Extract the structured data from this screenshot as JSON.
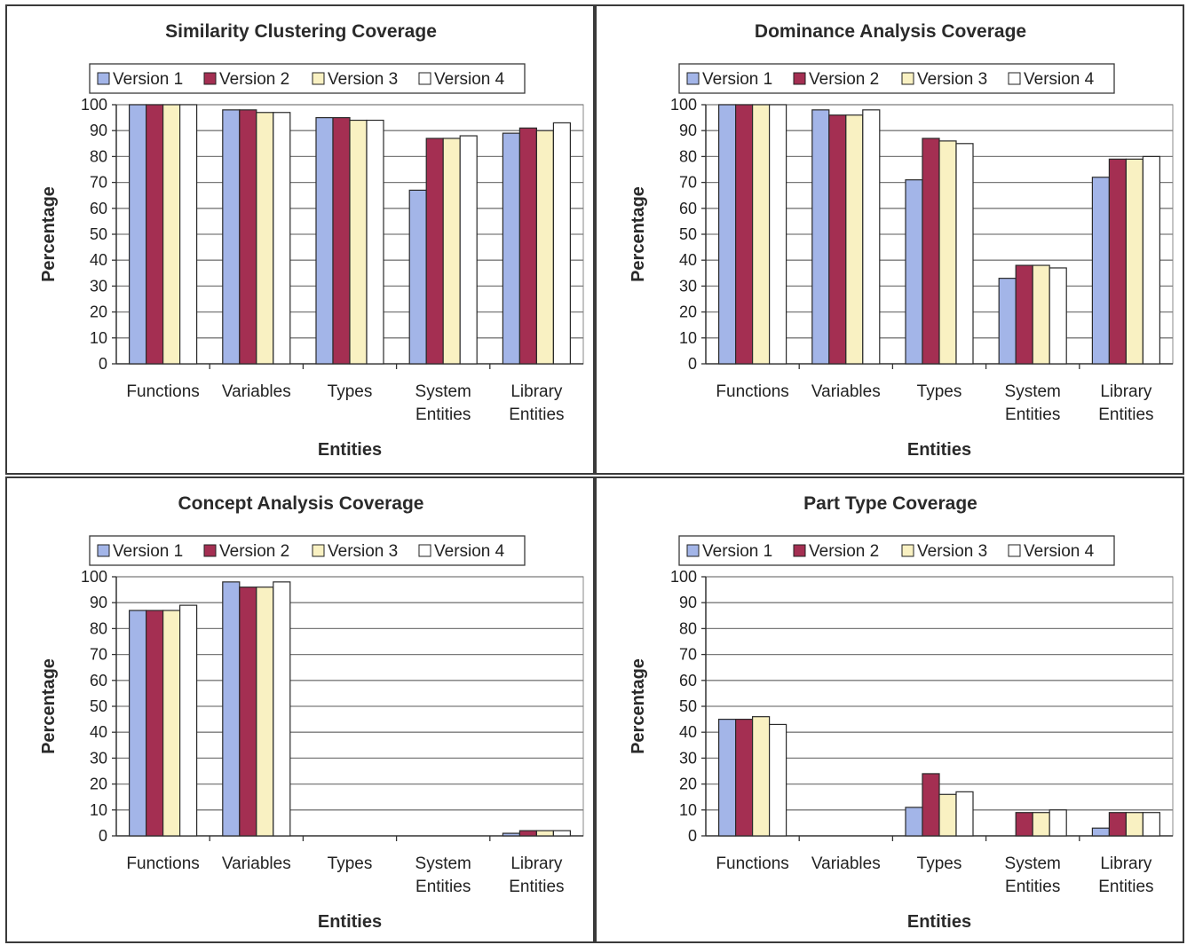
{
  "colors": {
    "Version 1": "#a3b5e8",
    "Version 2": "#a42f52",
    "Version 3": "#f9f1c2",
    "Version 4": "#ffffff",
    "frame": "#3a3a3a",
    "gridline": "#7a7a7a",
    "plot_border": "#8a8a8a"
  },
  "chart_data": [
    {
      "type": "bar",
      "title": "Similarity Clustering Coverage",
      "xlabel": "Entities",
      "ylabel": "Percentage",
      "ylim": [
        0,
        100
      ],
      "yticks": [
        0,
        10,
        20,
        30,
        40,
        50,
        60,
        70,
        80,
        90,
        100
      ],
      "grid": true,
      "legend_position": "top",
      "categories": [
        [
          "Functions"
        ],
        [
          "Variables"
        ],
        [
          "Types"
        ],
        [
          "System",
          "Entities"
        ],
        [
          "Library",
          "Entities"
        ]
      ],
      "series": [
        {
          "name": "Version 1",
          "values": [
            100,
            98,
            95,
            67,
            89
          ]
        },
        {
          "name": "Version 2",
          "values": [
            100,
            98,
            95,
            87,
            91
          ]
        },
        {
          "name": "Version 3",
          "values": [
            100,
            97,
            94,
            87,
            90
          ]
        },
        {
          "name": "Version 4",
          "values": [
            100,
            97,
            94,
            88,
            93
          ]
        }
      ]
    },
    {
      "type": "bar",
      "title": "Dominance Analysis Coverage",
      "xlabel": "Entities",
      "ylabel": "Percentage",
      "ylim": [
        0,
        100
      ],
      "yticks": [
        0,
        10,
        20,
        30,
        40,
        50,
        60,
        70,
        80,
        90,
        100
      ],
      "grid": true,
      "legend_position": "top",
      "categories": [
        [
          "Functions"
        ],
        [
          "Variables"
        ],
        [
          "Types"
        ],
        [
          "System",
          "Entities"
        ],
        [
          "Library",
          "Entities"
        ]
      ],
      "series": [
        {
          "name": "Version 1",
          "values": [
            100,
            98,
            71,
            33,
            72
          ]
        },
        {
          "name": "Version 2",
          "values": [
            100,
            96,
            87,
            38,
            79
          ]
        },
        {
          "name": "Version 3",
          "values": [
            100,
            96,
            86,
            38,
            79
          ]
        },
        {
          "name": "Version 4",
          "values": [
            100,
            98,
            85,
            37,
            80
          ]
        }
      ]
    },
    {
      "type": "bar",
      "title": "Concept Analysis Coverage",
      "xlabel": "Entities",
      "ylabel": "Percentage",
      "ylim": [
        0,
        100
      ],
      "yticks": [
        0,
        10,
        20,
        30,
        40,
        50,
        60,
        70,
        80,
        90,
        100
      ],
      "grid": true,
      "legend_position": "top",
      "categories": [
        [
          "Functions"
        ],
        [
          "Variables"
        ],
        [
          "Types"
        ],
        [
          "System",
          "Entities"
        ],
        [
          "Library",
          "Entities"
        ]
      ],
      "series": [
        {
          "name": "Version 1",
          "values": [
            87,
            98,
            0,
            0,
            1
          ]
        },
        {
          "name": "Version 2",
          "values": [
            87,
            96,
            0,
            0,
            2
          ]
        },
        {
          "name": "Version 3",
          "values": [
            87,
            96,
            0,
            0,
            2
          ]
        },
        {
          "name": "Version 4",
          "values": [
            89,
            98,
            0,
            0,
            2
          ]
        }
      ]
    },
    {
      "type": "bar",
      "title": "Part Type Coverage",
      "xlabel": "Entities",
      "ylabel": "Percentage",
      "ylim": [
        0,
        100
      ],
      "yticks": [
        0,
        10,
        20,
        30,
        40,
        50,
        60,
        70,
        80,
        90,
        100
      ],
      "grid": true,
      "legend_position": "top",
      "categories": [
        [
          "Functions"
        ],
        [
          "Variables"
        ],
        [
          "Types"
        ],
        [
          "System",
          "Entities"
        ],
        [
          "Library",
          "Entities"
        ]
      ],
      "series": [
        {
          "name": "Version 1",
          "values": [
            45,
            0,
            11,
            0,
            3
          ]
        },
        {
          "name": "Version 2",
          "values": [
            45,
            0,
            24,
            9,
            9
          ]
        },
        {
          "name": "Version 3",
          "values": [
            46,
            0,
            16,
            9,
            9
          ]
        },
        {
          "name": "Version 4",
          "values": [
            43,
            0,
            17,
            10,
            9
          ]
        }
      ]
    }
  ]
}
